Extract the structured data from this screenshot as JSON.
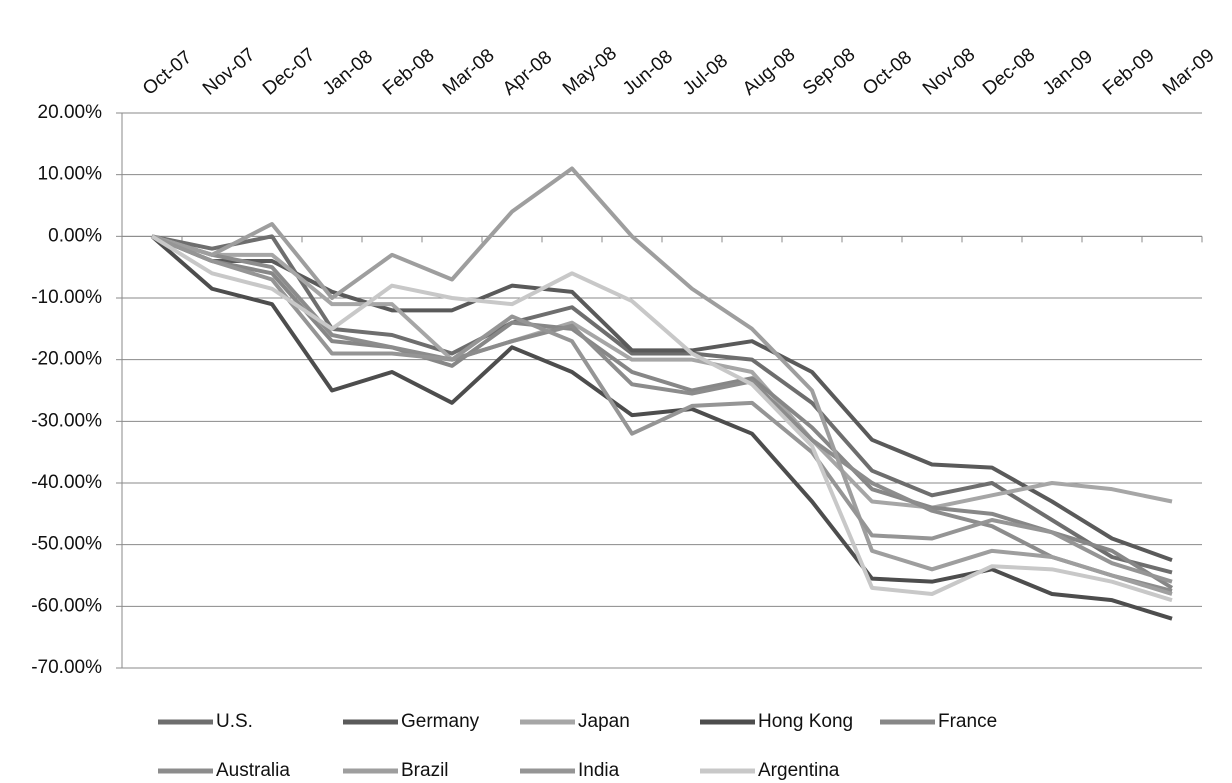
{
  "chart_data": {
    "type": "line",
    "categories": [
      "Oct-07",
      "Nov-07",
      "Dec-07",
      "Jan-08",
      "Feb-08",
      "Mar-08",
      "Apr-08",
      "May-08",
      "Jun-08",
      "Jul-08",
      "Aug-08",
      "Sep-08",
      "Oct-08",
      "Nov-08",
      "Dec-08",
      "Jan-09",
      "Feb-09",
      "Mar-09"
    ],
    "ylim": [
      -70,
      20
    ],
    "yticks": [
      {
        "value": 20,
        "label": "20.00%"
      },
      {
        "value": 10,
        "label": "10.00%"
      },
      {
        "value": 0,
        "label": "0.00%"
      },
      {
        "value": -10,
        "label": "-10.00%"
      },
      {
        "value": -20,
        "label": "-20.00%"
      },
      {
        "value": -30,
        "label": "-30.00%"
      },
      {
        "value": -40,
        "label": "-40.00%"
      },
      {
        "value": -50,
        "label": "-50.00%"
      },
      {
        "value": -60,
        "label": "-60.00%"
      },
      {
        "value": -70,
        "label": "-70.00%"
      }
    ],
    "grid": true,
    "legend": "bottom",
    "series": [
      {
        "name": "U.S.",
        "color": "#6e6e6e",
        "values": [
          0,
          -2,
          0,
          -15,
          -16,
          -19,
          -14,
          -11.5,
          -19,
          -19,
          -20,
          -27,
          -38,
          -42,
          -40,
          -46,
          -52,
          -54.5
        ]
      },
      {
        "name": "Germany",
        "color": "#5a5a5a",
        "values": [
          0,
          -4,
          -4,
          -9,
          -12,
          -12,
          -8,
          -9,
          -18.5,
          -18.5,
          -17,
          -22,
          -33,
          -37,
          -37.5,
          -43,
          -49,
          -52.5
        ]
      },
      {
        "name": "Japan",
        "color": "#a6a6a6",
        "values": [
          0,
          -3,
          -3,
          -11,
          -11,
          -20,
          -17,
          -14,
          -20,
          -20,
          -22,
          -33,
          -43,
          -44,
          -42,
          -40,
          -41,
          -43
        ]
      },
      {
        "name": "Hong Kong",
        "color": "#4d4d4d",
        "values": [
          0,
          -8.5,
          -11,
          -25,
          -22,
          -27,
          -18,
          -22,
          -29,
          -28,
          -32,
          -43,
          -55.5,
          -56,
          -54,
          -58,
          -59,
          -62
        ]
      },
      {
        "name": "France",
        "color": "#878787",
        "values": [
          0,
          -4,
          -6,
          -17,
          -18,
          -21,
          -14,
          -15,
          -22,
          -25,
          -23,
          -31,
          -41,
          -44,
          -45,
          -48,
          -51,
          -57
        ]
      },
      {
        "name": "Australia",
        "color": "#8c8c8c",
        "values": [
          0,
          -3,
          -5,
          -16,
          -18,
          -20,
          -17,
          -14.5,
          -24,
          -25.5,
          -23.5,
          -33,
          -40,
          -44.5,
          -47,
          -52,
          -55,
          -57.5
        ]
      },
      {
        "name": "Brazil",
        "color": "#9e9e9e",
        "values": [
          0,
          -3,
          2,
          -10,
          -3,
          -7,
          4,
          11,
          0,
          -8.5,
          -15,
          -25,
          -51,
          -54,
          -51,
          -52,
          -55,
          -58
        ]
      },
      {
        "name": "India",
        "color": "#959595",
        "values": [
          0,
          -4,
          -7,
          -19,
          -19,
          -20,
          -13,
          -17,
          -32,
          -27.5,
          -27,
          -35,
          -48.5,
          -49,
          -46,
          -48,
          -53,
          -56
        ]
      },
      {
        "name": "Argentina",
        "color": "#c8c8c8",
        "values": [
          0,
          -6,
          -8.5,
          -15,
          -8,
          -10,
          -11,
          -6,
          -10.5,
          -19,
          -24,
          -34,
          -57,
          -58,
          -53.5,
          -54,
          -56,
          -59
        ]
      }
    ]
  }
}
